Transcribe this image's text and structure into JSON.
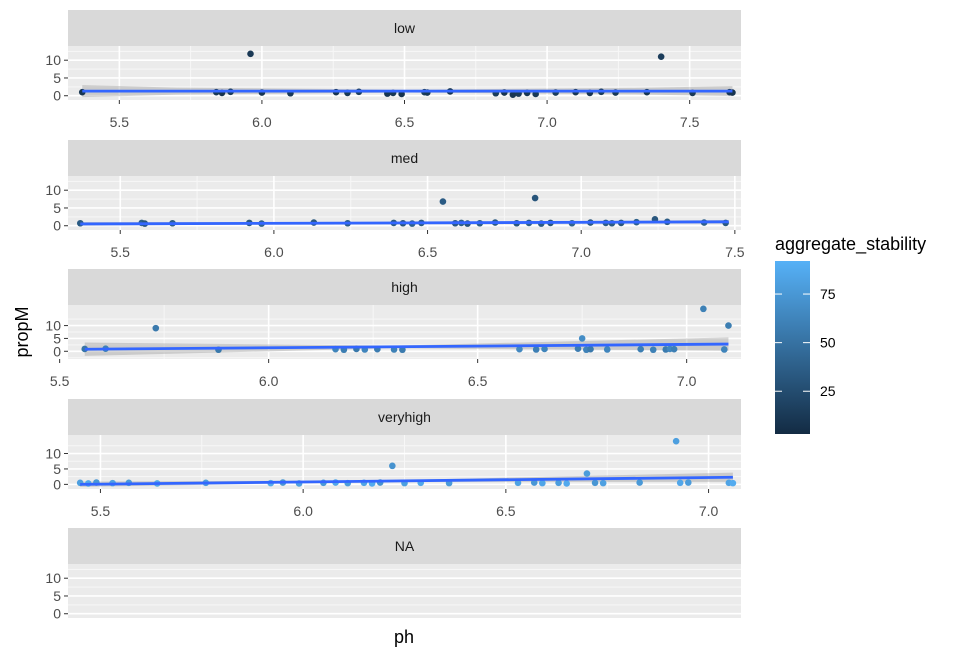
{
  "chart_data": {
    "type": "scatter",
    "facet_variable_values": [
      "low",
      "med",
      "high",
      "veryhigh",
      "NA"
    ],
    "xlabel": "ph",
    "ylabel": "propM",
    "color_variable": "aggregate_stability",
    "legend": {
      "title": "aggregate_stability",
      "ticks": [
        25,
        50,
        75
      ],
      "range": [
        3,
        92
      ],
      "low_color": "#132B43",
      "high_color": "#56B1F7",
      "placement": "right"
    },
    "smooth_color": "#3366FF",
    "ribbon_color": "#999999",
    "y_ticks": [
      0,
      5,
      10
    ],
    "panels": [
      {
        "label": "low",
        "xlim": [
          5.32,
          7.68
        ],
        "x_ticks": [
          5.5,
          6.0,
          6.5,
          7.0,
          7.5
        ],
        "x_tick_labels": [
          "5.5",
          "6.0",
          "6.5",
          "7.0",
          "7.5"
        ],
        "ylim": [
          -1.2,
          14
        ],
        "points": [
          {
            "x": 5.37,
            "y": 1.0,
            "c": 10
          },
          {
            "x": 5.96,
            "y": 11.8,
            "c": 12
          },
          {
            "x": 7.4,
            "y": 11.0,
            "c": 15
          },
          {
            "x": 5.84,
            "y": 1.0,
            "c": 12
          },
          {
            "x": 5.86,
            "y": 0.8,
            "c": 8
          },
          {
            "x": 5.89,
            "y": 1.1,
            "c": 14
          },
          {
            "x": 6.0,
            "y": 0.9,
            "c": 10
          },
          {
            "x": 6.1,
            "y": 0.7,
            "c": 13
          },
          {
            "x": 6.26,
            "y": 1.0,
            "c": 9
          },
          {
            "x": 6.3,
            "y": 0.8,
            "c": 12
          },
          {
            "x": 6.34,
            "y": 1.1,
            "c": 15
          },
          {
            "x": 6.44,
            "y": 0.6,
            "c": 10
          },
          {
            "x": 6.46,
            "y": 0.8,
            "c": 11
          },
          {
            "x": 6.49,
            "y": 0.5,
            "c": 8
          },
          {
            "x": 6.57,
            "y": 1.0,
            "c": 16
          },
          {
            "x": 6.58,
            "y": 0.9,
            "c": 12
          },
          {
            "x": 6.66,
            "y": 1.2,
            "c": 10
          },
          {
            "x": 6.82,
            "y": 0.7,
            "c": 14
          },
          {
            "x": 6.85,
            "y": 0.9,
            "c": 9
          },
          {
            "x": 6.88,
            "y": 0.3,
            "c": 11
          },
          {
            "x": 6.9,
            "y": 0.6,
            "c": 13
          },
          {
            "x": 6.93,
            "y": 0.8,
            "c": 10
          },
          {
            "x": 6.96,
            "y": 0.5,
            "c": 12
          },
          {
            "x": 7.03,
            "y": 0.9,
            "c": 15
          },
          {
            "x": 7.1,
            "y": 1.0,
            "c": 11
          },
          {
            "x": 7.15,
            "y": 0.8,
            "c": 9
          },
          {
            "x": 7.19,
            "y": 1.1,
            "c": 14
          },
          {
            "x": 7.24,
            "y": 0.9,
            "c": 12
          },
          {
            "x": 7.35,
            "y": 1.0,
            "c": 10
          },
          {
            "x": 7.51,
            "y": 0.8,
            "c": 13
          },
          {
            "x": 7.64,
            "y": 1.0,
            "c": 11
          },
          {
            "x": 7.65,
            "y": 0.9,
            "c": 9
          }
        ],
        "smooth": {
          "x": [
            5.37,
            7.65
          ],
          "y": [
            1.3,
            1.3
          ]
        },
        "ribbon": {
          "x": [
            5.37,
            5.7,
            6.5,
            7.3,
            7.65
          ],
          "lower": [
            -0.4,
            0.3,
            0.9,
            0.4,
            -0.1
          ],
          "upper": [
            3.0,
            2.3,
            1.7,
            2.2,
            2.7
          ]
        }
      },
      {
        "label": "med",
        "xlim": [
          5.33,
          7.52
        ],
        "x_ticks": [
          5.5,
          6.0,
          6.5,
          7.0,
          7.5
        ],
        "x_tick_labels": [
          "5.5",
          "6.0",
          "6.5",
          "7.0",
          "7.5"
        ],
        "ylim": [
          -1.2,
          14
        ],
        "points": [
          {
            "x": 6.55,
            "y": 6.8,
            "c": 35
          },
          {
            "x": 6.85,
            "y": 7.8,
            "c": 30
          },
          {
            "x": 5.37,
            "y": 0.7,
            "c": 35
          },
          {
            "x": 5.57,
            "y": 0.8,
            "c": 38
          },
          {
            "x": 5.58,
            "y": 0.6,
            "c": 30
          },
          {
            "x": 5.67,
            "y": 0.7,
            "c": 36
          },
          {
            "x": 5.92,
            "y": 0.8,
            "c": 33
          },
          {
            "x": 5.96,
            "y": 0.6,
            "c": 40
          },
          {
            "x": 6.13,
            "y": 0.9,
            "c": 32
          },
          {
            "x": 6.24,
            "y": 0.7,
            "c": 37
          },
          {
            "x": 6.39,
            "y": 0.8,
            "c": 34
          },
          {
            "x": 6.42,
            "y": 0.7,
            "c": 31
          },
          {
            "x": 6.45,
            "y": 0.6,
            "c": 39
          },
          {
            "x": 6.48,
            "y": 0.8,
            "c": 35
          },
          {
            "x": 6.59,
            "y": 0.7,
            "c": 33
          },
          {
            "x": 6.61,
            "y": 0.8,
            "c": 38
          },
          {
            "x": 6.63,
            "y": 0.6,
            "c": 30
          },
          {
            "x": 6.67,
            "y": 0.7,
            "c": 36
          },
          {
            "x": 6.72,
            "y": 0.9,
            "c": 34
          },
          {
            "x": 6.79,
            "y": 0.7,
            "c": 32
          },
          {
            "x": 6.83,
            "y": 0.8,
            "c": 37
          },
          {
            "x": 6.87,
            "y": 0.6,
            "c": 35
          },
          {
            "x": 6.9,
            "y": 0.8,
            "c": 31
          },
          {
            "x": 6.97,
            "y": 0.7,
            "c": 39
          },
          {
            "x": 7.03,
            "y": 0.9,
            "c": 33
          },
          {
            "x": 7.08,
            "y": 0.8,
            "c": 36
          },
          {
            "x": 7.1,
            "y": 0.7,
            "c": 34
          },
          {
            "x": 7.13,
            "y": 0.8,
            "c": 30
          },
          {
            "x": 7.18,
            "y": 1.0,
            "c": 38
          },
          {
            "x": 7.24,
            "y": 1.8,
            "c": 32
          },
          {
            "x": 7.28,
            "y": 1.1,
            "c": 35
          },
          {
            "x": 7.4,
            "y": 0.9,
            "c": 37
          },
          {
            "x": 7.47,
            "y": 0.8,
            "c": 33
          }
        ],
        "smooth": {
          "x": [
            5.37,
            7.48
          ],
          "y": [
            0.5,
            1.1
          ]
        },
        "ribbon": {
          "x": [
            5.37,
            6.4,
            7.48
          ],
          "lower": [
            0.0,
            0.6,
            0.6
          ],
          "upper": [
            1.0,
            1.0,
            1.6
          ]
        }
      },
      {
        "label": "high",
        "xlim": [
          5.52,
          7.13
        ],
        "x_ticks": [
          5.5,
          6.0,
          6.5,
          7.0
        ],
        "x_tick_labels": [
          "5.5",
          "6.0",
          "6.5",
          "7.0"
        ],
        "ylim": [
          -3,
          18
        ],
        "points": [
          {
            "x": 5.73,
            "y": 9.0,
            "c": 55
          },
          {
            "x": 7.04,
            "y": 16.5,
            "c": 60
          },
          {
            "x": 7.1,
            "y": 10.0,
            "c": 58
          },
          {
            "x": 6.75,
            "y": 5.0,
            "c": 68
          },
          {
            "x": 5.56,
            "y": 0.9,
            "c": 52
          },
          {
            "x": 5.61,
            "y": 1.0,
            "c": 60
          },
          {
            "x": 5.88,
            "y": 0.6,
            "c": 55
          },
          {
            "x": 6.16,
            "y": 0.8,
            "c": 62
          },
          {
            "x": 6.18,
            "y": 0.6,
            "c": 58
          },
          {
            "x": 6.21,
            "y": 0.9,
            "c": 54
          },
          {
            "x": 6.23,
            "y": 0.7,
            "c": 63
          },
          {
            "x": 6.26,
            "y": 0.8,
            "c": 57
          },
          {
            "x": 6.3,
            "y": 0.7,
            "c": 60
          },
          {
            "x": 6.32,
            "y": 0.6,
            "c": 56
          },
          {
            "x": 6.6,
            "y": 0.8,
            "c": 65
          },
          {
            "x": 6.64,
            "y": 0.7,
            "c": 59
          },
          {
            "x": 6.66,
            "y": 0.9,
            "c": 62
          },
          {
            "x": 6.74,
            "y": 1.0,
            "c": 57
          },
          {
            "x": 6.76,
            "y": 0.6,
            "c": 61
          },
          {
            "x": 6.77,
            "y": 0.8,
            "c": 55
          },
          {
            "x": 6.81,
            "y": 0.7,
            "c": 63
          },
          {
            "x": 6.89,
            "y": 0.8,
            "c": 58
          },
          {
            "x": 6.92,
            "y": 0.6,
            "c": 60
          },
          {
            "x": 6.95,
            "y": 0.7,
            "c": 56
          },
          {
            "x": 6.96,
            "y": 0.9,
            "c": 64
          },
          {
            "x": 6.97,
            "y": 0.8,
            "c": 59
          },
          {
            "x": 7.09,
            "y": 0.7,
            "c": 62
          }
        ],
        "smooth": {
          "x": [
            5.56,
            7.1
          ],
          "y": [
            0.8,
            2.8
          ]
        },
        "ribbon": {
          "x": [
            5.56,
            6.3,
            7.1
          ],
          "lower": [
            -1.8,
            1.2,
            0.2
          ],
          "upper": [
            3.4,
            2.2,
            5.4
          ]
        }
      },
      {
        "label": "veryhigh",
        "xlim": [
          5.42,
          7.08
        ],
        "x_ticks": [
          5.5,
          6.0,
          6.5,
          7.0
        ],
        "x_tick_labels": [
          "5.5",
          "6.0",
          "6.5",
          "7.0"
        ],
        "ylim": [
          -1.5,
          16
        ],
        "points": [
          {
            "x": 6.92,
            "y": 14.0,
            "c": 80
          },
          {
            "x": 6.22,
            "y": 6.0,
            "c": 72
          },
          {
            "x": 6.7,
            "y": 3.5,
            "c": 78
          },
          {
            "x": 5.45,
            "y": 0.5,
            "c": 80
          },
          {
            "x": 5.47,
            "y": 0.3,
            "c": 86
          },
          {
            "x": 5.49,
            "y": 0.6,
            "c": 75
          },
          {
            "x": 5.53,
            "y": 0.4,
            "c": 82
          },
          {
            "x": 5.57,
            "y": 0.5,
            "c": 77
          },
          {
            "x": 5.64,
            "y": 0.3,
            "c": 84
          },
          {
            "x": 5.76,
            "y": 0.5,
            "c": 79
          },
          {
            "x": 5.92,
            "y": 0.4,
            "c": 87
          },
          {
            "x": 5.95,
            "y": 0.6,
            "c": 74
          },
          {
            "x": 5.99,
            "y": 0.3,
            "c": 81
          },
          {
            "x": 6.05,
            "y": 0.5,
            "c": 76
          },
          {
            "x": 6.08,
            "y": 0.6,
            "c": 85
          },
          {
            "x": 6.11,
            "y": 0.4,
            "c": 78
          },
          {
            "x": 6.15,
            "y": 0.5,
            "c": 83
          },
          {
            "x": 6.17,
            "y": 0.3,
            "c": 88
          },
          {
            "x": 6.19,
            "y": 0.6,
            "c": 72
          },
          {
            "x": 6.25,
            "y": 0.4,
            "c": 80
          },
          {
            "x": 6.29,
            "y": 0.5,
            "c": 86
          },
          {
            "x": 6.36,
            "y": 0.4,
            "c": 77
          },
          {
            "x": 6.53,
            "y": 0.5,
            "c": 82
          },
          {
            "x": 6.57,
            "y": 0.6,
            "c": 75
          },
          {
            "x": 6.59,
            "y": 0.4,
            "c": 84
          },
          {
            "x": 6.63,
            "y": 0.5,
            "c": 79
          },
          {
            "x": 6.65,
            "y": 0.3,
            "c": 87
          },
          {
            "x": 6.72,
            "y": 0.5,
            "c": 74
          },
          {
            "x": 6.74,
            "y": 0.4,
            "c": 81
          },
          {
            "x": 6.83,
            "y": 0.6,
            "c": 76
          },
          {
            "x": 6.93,
            "y": 0.5,
            "c": 85
          },
          {
            "x": 6.95,
            "y": 0.6,
            "c": 78
          },
          {
            "x": 7.05,
            "y": 0.5,
            "c": 83
          },
          {
            "x": 7.06,
            "y": 0.4,
            "c": 88
          }
        ],
        "smooth": {
          "x": [
            5.45,
            7.06
          ],
          "y": [
            0.0,
            2.3
          ]
        },
        "ribbon": {
          "x": [
            5.45,
            6.2,
            7.06
          ],
          "lower": [
            -0.8,
            0.8,
            0.8
          ],
          "upper": [
            0.9,
            1.3,
            3.8
          ]
        }
      },
      {
        "label": "NA",
        "xlim": [
          0,
          1
        ],
        "x_ticks": [],
        "x_tick_labels": [],
        "ylim": [
          -1.2,
          14
        ],
        "points": [],
        "smooth": null,
        "ribbon": null
      }
    ]
  }
}
